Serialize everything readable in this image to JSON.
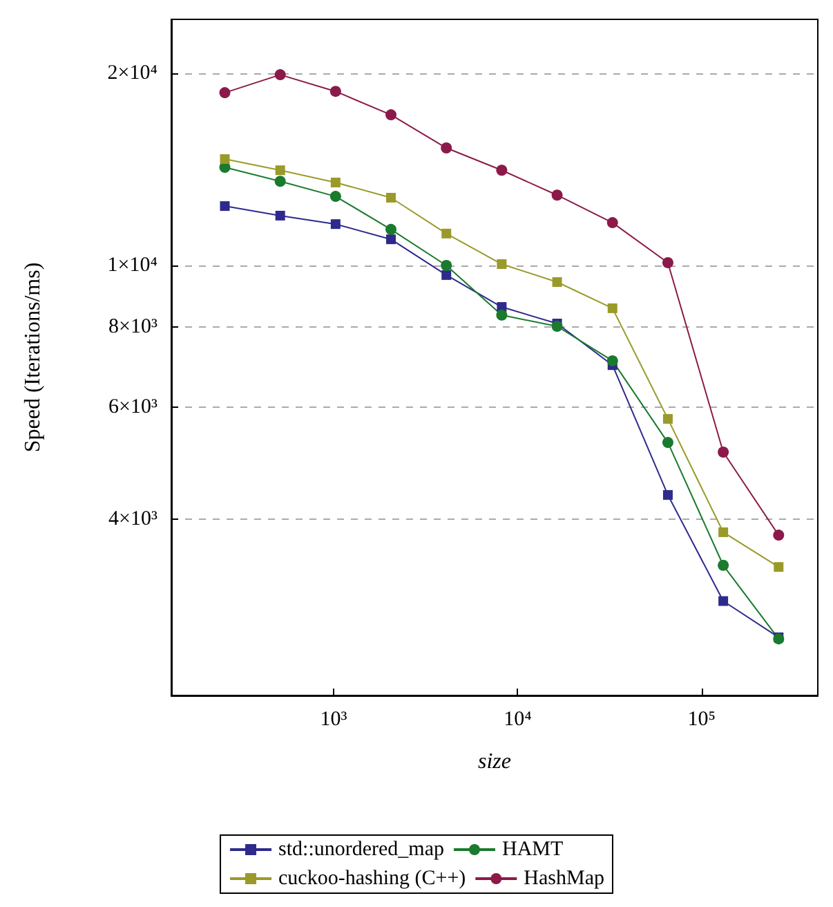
{
  "chart_data": {
    "type": "line",
    "xlabel": "size",
    "ylabel": "Speed (Iterations/ms)",
    "log": "xy",
    "grid": "y",
    "legend": "bottom",
    "line_style": "solid",
    "x": [
      256,
      512,
      1024,
      2048,
      4096,
      8192,
      16384,
      32768,
      65536,
      131072,
      262144
    ],
    "xlim": [
      131,
      428000
    ],
    "ylim": [
      2120,
      24300
    ],
    "xticks": [
      {
        "value": 1000,
        "label": "10³"
      },
      {
        "value": 10000,
        "label": "10⁴"
      },
      {
        "value": 100000,
        "label": "10⁵"
      }
    ],
    "yticks": [
      {
        "value": 4000,
        "label": "4×10³"
      },
      {
        "value": 6000,
        "label": "6×10³"
      },
      {
        "value": 8000,
        "label": "8×10³"
      },
      {
        "value": 10000,
        "label": "1×10⁴"
      },
      {
        "value": 20000,
        "label": "2×10⁴"
      }
    ],
    "series": [
      {
        "name": "std::unordered_map",
        "color": "#2e2a8c",
        "marker": "square",
        "values": [
          12390,
          11970,
          11610,
          10990,
          9660,
          8610,
          8110,
          6980,
          4370,
          2980,
          2615
        ]
      },
      {
        "name": "HAMT",
        "color": "#1a7a2e",
        "marker": "circle",
        "values": [
          14250,
          13550,
          12830,
          11390,
          10000,
          8360,
          8030,
          7090,
          5280,
          3390,
          2600
        ]
      },
      {
        "name": "cuckoo-hashing (C++)",
        "color": "#9a9a2a",
        "marker": "square",
        "values": [
          14680,
          14100,
          13490,
          12770,
          11220,
          10050,
          9420,
          8570,
          5750,
          3820,
          3370
        ]
      },
      {
        "name": "HashMap",
        "color": "#8b1a4a",
        "marker": "circle",
        "values": [
          18650,
          19900,
          18740,
          17220,
          15280,
          14100,
          12890,
          11670,
          10100,
          5100,
          3780
        ]
      }
    ]
  }
}
